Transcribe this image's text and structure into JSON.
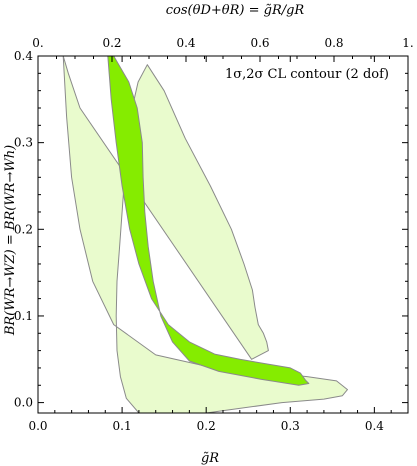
{
  "chart_data": {
    "type": "area",
    "annotation": "1σ,2σ CL contour (2 dof)",
    "xlabel": "g̃R",
    "ylabel": "BR(WR→WZ) = BR(WR→Wh)",
    "top_label": "cos(θD+θR) = g̃R/gR",
    "xlim": [
      0.0,
      0.44
    ],
    "ylim": [
      -0.012,
      0.4
    ],
    "top_lim": [
      0.0,
      1.0
    ],
    "x_ticks": [
      "0.0",
      "0.1",
      "0.2",
      "0.3",
      "0.4"
    ],
    "x_tick_values": [
      0.0,
      0.1,
      0.2,
      0.3,
      0.4
    ],
    "y_ticks": [
      "0.0",
      "0.1",
      "0.2",
      "0.3",
      "0.4"
    ],
    "y_tick_values": [
      0.0,
      0.1,
      0.2,
      0.3,
      0.4
    ],
    "top_ticks": [
      "0.",
      "0.2",
      "0.4",
      "0.6",
      "0.8",
      "1."
    ],
    "top_tick_values": [
      0.0,
      0.2,
      0.4,
      0.6,
      0.8,
      1.0
    ],
    "colors": {
      "sigma2": "#e9fbcd",
      "sigma1": "#85ec00",
      "stroke": "#8a8a8a",
      "frame": "#000000"
    },
    "series": [
      {
        "name": "2σ",
        "x": [
          0.03,
          0.034,
          0.04,
          0.05,
          0.065,
          0.09,
          0.14,
          0.2,
          0.26,
          0.32,
          0.355,
          0.368,
          0.362,
          0.34,
          0.29,
          0.2,
          0.12,
          0.105,
          0.098,
          0.094,
          0.093,
          0.094,
          0.097,
          0.1,
          0.103,
          0.107,
          0.112,
          0.119,
          0.13,
          0.15,
          0.175,
          0.205,
          0.23,
          0.245,
          0.255,
          0.258,
          0.262,
          0.268,
          0.272,
          0.274,
          0.254,
          0.05,
          0.036
        ],
        "y": [
          0.4,
          0.33,
          0.26,
          0.2,
          0.14,
          0.09,
          0.055,
          0.042,
          0.036,
          0.03,
          0.025,
          0.015,
          0.008,
          0.004,
          0.0,
          -0.012,
          -0.012,
          0.005,
          0.03,
          0.06,
          0.1,
          0.14,
          0.18,
          0.22,
          0.26,
          0.3,
          0.34,
          0.37,
          0.39,
          0.36,
          0.305,
          0.25,
          0.2,
          0.16,
          0.13,
          0.11,
          0.09,
          0.08,
          0.07,
          0.06,
          0.05,
          0.34,
          0.38
        ]
      },
      {
        "name": "1σ",
        "x": [
          0.083,
          0.087,
          0.093,
          0.1,
          0.109,
          0.12,
          0.135,
          0.155,
          0.18,
          0.21,
          0.24,
          0.27,
          0.3,
          0.312,
          0.318,
          0.322,
          0.31,
          0.265,
          0.215,
          0.18,
          0.16,
          0.146,
          0.137,
          0.131,
          0.127,
          0.125,
          0.124,
          0.118,
          0.108,
          0.09,
          0.083
        ],
        "y": [
          0.4,
          0.35,
          0.3,
          0.25,
          0.2,
          0.16,
          0.12,
          0.09,
          0.07,
          0.056,
          0.05,
          0.045,
          0.04,
          0.034,
          0.026,
          0.022,
          0.02,
          0.027,
          0.036,
          0.048,
          0.07,
          0.1,
          0.14,
          0.18,
          0.22,
          0.26,
          0.3,
          0.34,
          0.37,
          0.4,
          0.4
        ]
      }
    ]
  }
}
